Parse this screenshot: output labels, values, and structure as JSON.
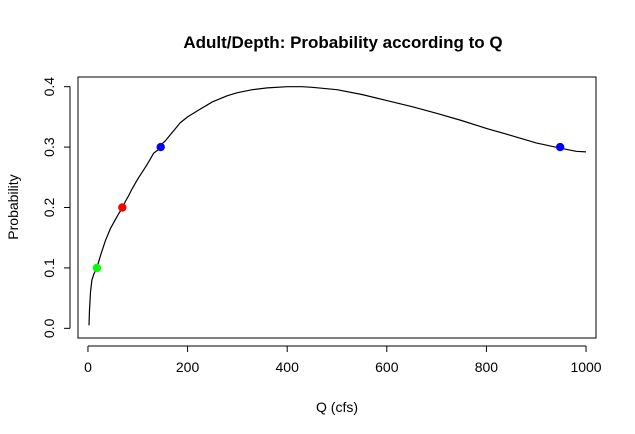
{
  "chart_data": {
    "type": "line",
    "title": "Adult/Depth: Probability according to Q",
    "xlabel": "Q (cfs)",
    "ylabel": "Probability",
    "xlim": [
      -20,
      1020
    ],
    "ylim": [
      -0.016,
      0.416
    ],
    "grid": false,
    "x_ticks": [
      0,
      200,
      400,
      600,
      800,
      1000
    ],
    "y_ticks": [
      0.0,
      0.1,
      0.2,
      0.3,
      0.4
    ],
    "x_tick_labels": [
      "0",
      "200",
      "400",
      "600",
      "800",
      "1000"
    ],
    "y_tick_labels": [
      "0.0",
      "0.1",
      "0.2",
      "0.3",
      "0.4"
    ],
    "series": [
      {
        "color": "#000000",
        "x": [
          2,
          3,
          5,
          8,
          12,
          18,
          25,
          35,
          45,
          55,
          62,
          70,
          75,
          82,
          88,
          95,
          102,
          110,
          118,
          125,
          132,
          140,
          148,
          155,
          165,
          175,
          185,
          200,
          220,
          250,
          280,
          300,
          330,
          360,
          400,
          430,
          450,
          500,
          550,
          600,
          650,
          700,
          750,
          800,
          850,
          900,
          950,
          980,
          1000
        ],
        "y": [
          0.005,
          0.03,
          0.06,
          0.08,
          0.09,
          0.1,
          0.12,
          0.145,
          0.165,
          0.18,
          0.19,
          0.2,
          0.21,
          0.22,
          0.23,
          0.24,
          0.25,
          0.26,
          0.27,
          0.28,
          0.29,
          0.295,
          0.305,
          0.31,
          0.32,
          0.33,
          0.34,
          0.35,
          0.36,
          0.375,
          0.385,
          0.39,
          0.395,
          0.398,
          0.4,
          0.4,
          0.399,
          0.395,
          0.387,
          0.377,
          0.367,
          0.356,
          0.344,
          0.331,
          0.319,
          0.307,
          0.298,
          0.293,
          0.292
        ]
      }
    ],
    "points": [
      {
        "x": 18,
        "y": 0.1,
        "color": "#00ff00"
      },
      {
        "x": 69,
        "y": 0.2,
        "color": "#ff0000"
      },
      {
        "x": 146,
        "y": 0.3,
        "color": "#0000ff"
      },
      {
        "x": 948,
        "y": 0.3,
        "color": "#0000ff"
      }
    ]
  }
}
